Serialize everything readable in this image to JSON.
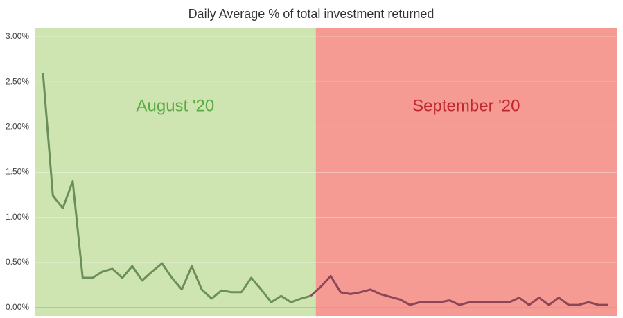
{
  "chart_data": {
    "type": "line",
    "title": "Daily Average % of total investment returned",
    "categories": [
      null,
      null,
      null,
      null,
      null,
      null,
      null,
      null,
      null,
      null,
      null,
      null,
      null,
      null,
      null,
      null,
      null,
      null,
      null,
      null,
      null,
      null,
      null,
      null,
      null,
      null,
      null,
      null,
      null,
      null,
      null,
      null,
      null,
      null,
      null,
      null,
      null,
      null,
      null,
      null,
      null,
      null,
      null,
      null,
      null,
      null,
      null,
      null,
      null,
      null,
      null,
      null,
      null,
      null,
      null,
      null,
      null,
      null
    ],
    "series": [
      {
        "color": "#6b8f5c",
        "region_color": "#cfe5b1",
        "label": "August '20",
        "label_color": "#5aab45",
        "values": [
          2.6,
          1.24,
          1.1,
          1.4,
          0.33,
          0.33,
          0.4,
          0.43,
          0.33,
          0.46,
          0.3,
          0.4,
          0.49,
          0.33,
          0.2,
          0.46,
          0.2,
          0.1,
          0.19,
          0.17,
          0.17,
          0.33,
          0.2,
          0.06,
          0.13,
          0.06,
          0.1,
          0.13,
          null,
          null,
          null,
          null,
          null,
          null,
          null,
          null,
          null,
          null,
          null,
          null,
          null,
          null,
          null,
          null,
          null,
          null,
          null,
          null,
          null,
          null,
          null,
          null,
          null,
          null,
          null,
          null,
          null,
          null
        ]
      },
      {
        "color": "#8c4656",
        "region_color": "#f59b93",
        "label": "September '20",
        "label_color": "#c0272d",
        "values": [
          null,
          null,
          null,
          null,
          null,
          null,
          null,
          null,
          null,
          null,
          null,
          null,
          null,
          null,
          null,
          null,
          null,
          null,
          null,
          null,
          null,
          null,
          null,
          null,
          null,
          null,
          null,
          null,
          0.23,
          0.35,
          0.17,
          0.15,
          0.17,
          0.2,
          0.15,
          0.12,
          0.09,
          0.03,
          0.06,
          0.06,
          0.06,
          0.08,
          0.03,
          0.06,
          0.06,
          0.06,
          0.06,
          0.06,
          0.11,
          0.03,
          0.11,
          0.03,
          0.11,
          0.03,
          0.03,
          0.06,
          0.03,
          0.03
        ]
      }
    ],
    "ylim": [
      0,
      3
    ],
    "yticks": [
      {
        "value": 0,
        "label": "0.00%"
      },
      {
        "value": 0.5,
        "label": "0.50%"
      },
      {
        "value": 1,
        "label": "1.00%"
      },
      {
        "value": 1.5,
        "label": "1.50%"
      },
      {
        "value": 2,
        "label": "2.00%"
      },
      {
        "value": 2.5,
        "label": "2.50%"
      },
      {
        "value": 3,
        "label": "3.00%"
      }
    ],
    "grid": true
  }
}
